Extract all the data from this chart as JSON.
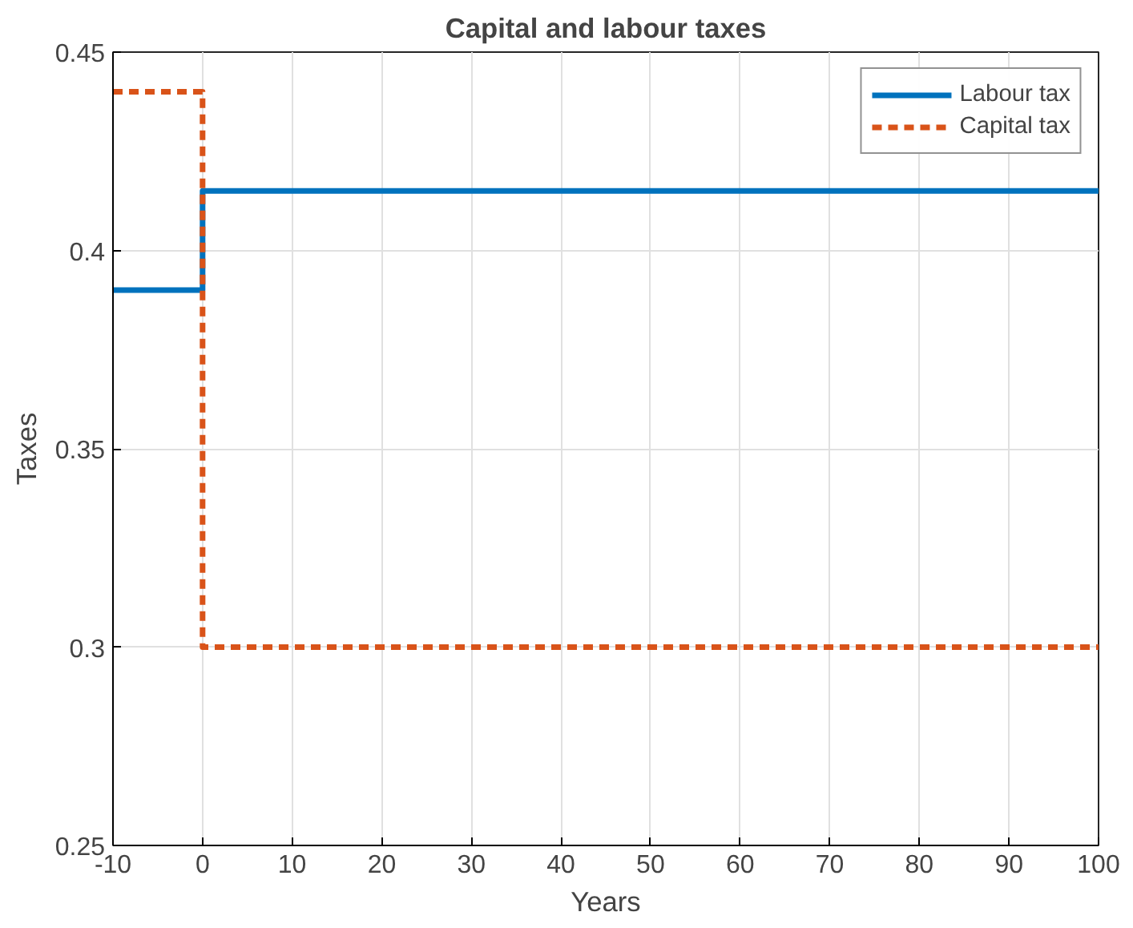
{
  "chart_data": {
    "type": "step",
    "title": "Capital and labour taxes",
    "xlabel": "Years",
    "ylabel": "Taxes",
    "xlim": [
      -10,
      100
    ],
    "xticks": [
      -10,
      0,
      10,
      20,
      30,
      40,
      50,
      60,
      70,
      80,
      90,
      100
    ],
    "ylim": [
      0.25,
      0.45
    ],
    "yticks": [
      {
        "value": 0.25,
        "label": "0.25"
      },
      {
        "value": 0.3,
        "label": "0.3"
      },
      {
        "value": 0.35,
        "label": "0.35"
      },
      {
        "value": 0.4,
        "label": "0.4"
      },
      {
        "value": 0.45,
        "label": "0.45"
      }
    ],
    "grid": true,
    "legend": "top right",
    "series": [
      {
        "name": "Labour tax",
        "color": "#0072bd",
        "x": [
          -10,
          0,
          100
        ],
        "values": [
          0.39,
          0.415,
          0.415
        ],
        "line_style": "solid"
      },
      {
        "name": "Capital tax",
        "color": "#d95319",
        "x": [
          -10,
          0,
          100
        ],
        "values": [
          0.44,
          0.3,
          0.3
        ],
        "line_style": "dashed"
      }
    ]
  }
}
